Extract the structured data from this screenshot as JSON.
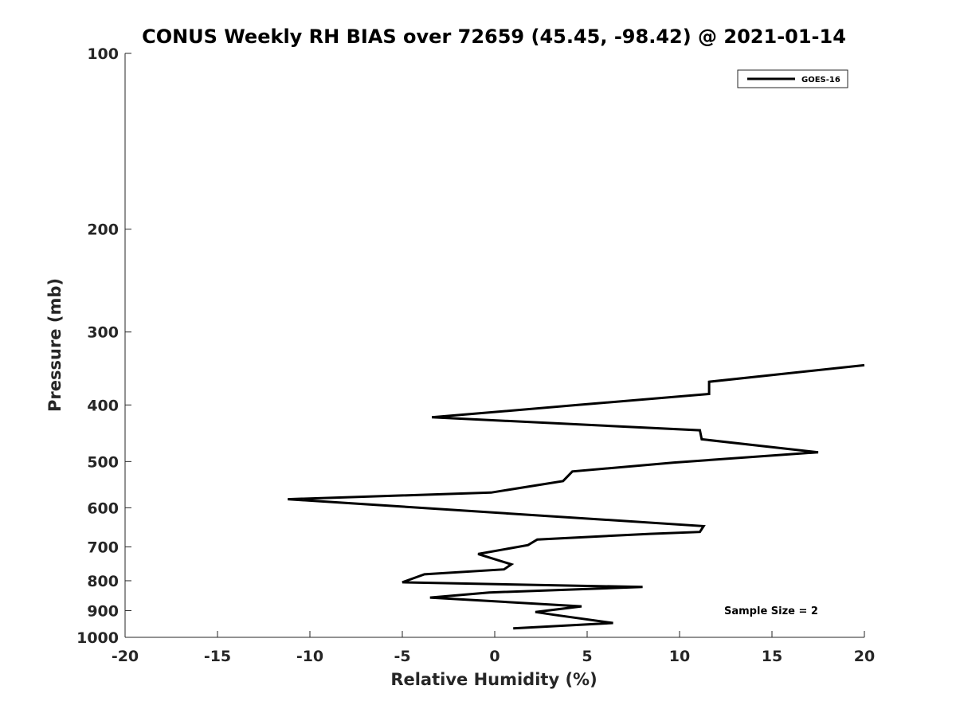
{
  "chart_data": {
    "type": "line",
    "title": "CONUS Weekly RH BIAS over 72659 (45.45, -98.42) @ 2021-01-14",
    "xlabel": "Relative Humidity (%)",
    "ylabel": "Pressure (mb)",
    "xlim": [
      -20,
      20
    ],
    "ylim": [
      100,
      1000
    ],
    "y_scale": "log",
    "y_reversed": true,
    "x_ticks": [
      -20,
      -15,
      -10,
      -5,
      0,
      5,
      10,
      15,
      20
    ],
    "x_tick_labels": [
      "-20",
      "-15",
      "-10",
      "-5",
      "0",
      "5",
      "10",
      "15",
      "20"
    ],
    "y_ticks": [
      100,
      200,
      300,
      400,
      500,
      600,
      700,
      800,
      900,
      1000
    ],
    "y_tick_labels": [
      "100",
      "200",
      "300",
      "400",
      "500",
      "600",
      "700",
      "800",
      "900",
      "1000"
    ],
    "grid": false,
    "legend_position": "top-right",
    "series": [
      {
        "name": "GOES-16",
        "color": "#000000",
        "x": [
          20.0,
          11.6,
          11.6,
          4.5,
          -3.4,
          11.1,
          11.2,
          17.5,
          9.7,
          4.2,
          3.7,
          -0.2,
          -11.2,
          11.3,
          11.1,
          8.4,
          2.3,
          1.8,
          -0.9,
          0.9,
          0.5,
          -3.8,
          -5.0,
          8.0,
          -0.3,
          -3.5,
          4.7,
          2.2,
          3.2,
          6.4,
          1.0
        ],
        "y": [
          342,
          365,
          383,
          400,
          420,
          442,
          458,
          482,
          502,
          520,
          540,
          565,
          580,
          645,
          660,
          665,
          680,
          695,
          720,
          750,
          765,
          780,
          805,
          820,
          838,
          855,
          885,
          905,
          915,
          945,
          965
        ]
      }
    ],
    "annotations": [
      "Sample Size = 2"
    ]
  }
}
